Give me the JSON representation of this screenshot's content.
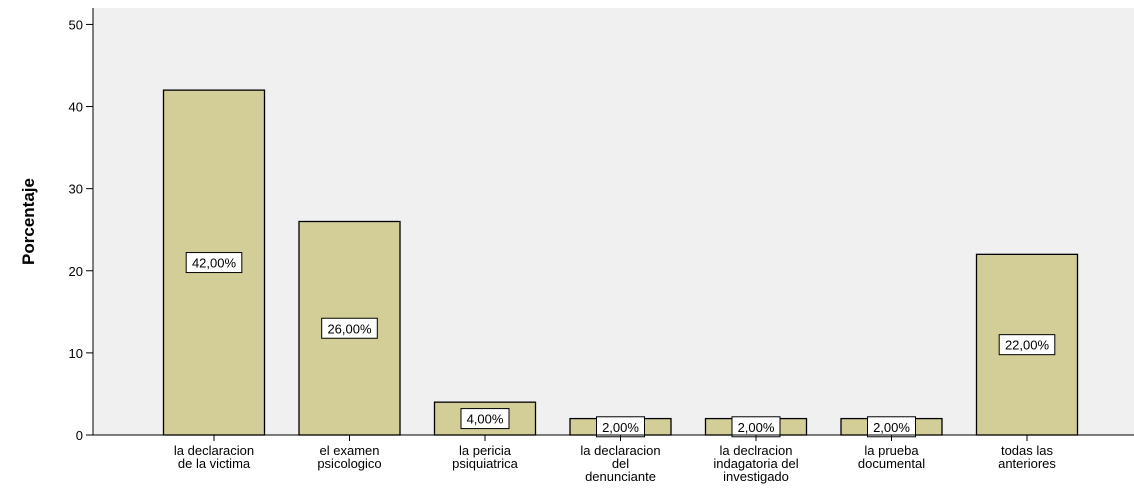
{
  "chart_data": {
    "type": "bar",
    "xlabel": "",
    "ylabel": "Porcentaje",
    "ylim": [
      0,
      52
    ],
    "yticks": [
      0,
      10,
      20,
      30,
      40,
      50
    ],
    "grid": false,
    "colors": {
      "plot_background": "#F0F0F0",
      "bar_fill": "#D3CE97",
      "bar_stroke": "#000000"
    },
    "categories": [
      "la declaracion de la victima",
      "el examen psicologico",
      "la pericia psiquiatrica",
      "la declaracion del denunciante",
      "la declracion indagatoria del investigado",
      "la prueba documental",
      "todas las anteriores"
    ],
    "category_lines": [
      [
        "la declaracion",
        "de la victima"
      ],
      [
        "el examen",
        "psicologico"
      ],
      [
        "la pericia",
        "psiquiatrica"
      ],
      [
        "la declaracion",
        "del",
        "denunciante"
      ],
      [
        "la declracion",
        "indagatoria del",
        "investigado"
      ],
      [
        "la prueba",
        "documental"
      ],
      [
        "todas las",
        "anteriores"
      ]
    ],
    "values": [
      42,
      26,
      4,
      2,
      2,
      2,
      22
    ],
    "data_labels": [
      "42,00%",
      "26,00%",
      "4,00%",
      "2,00%",
      "2,00%",
      "2,00%",
      "22,00%"
    ]
  }
}
